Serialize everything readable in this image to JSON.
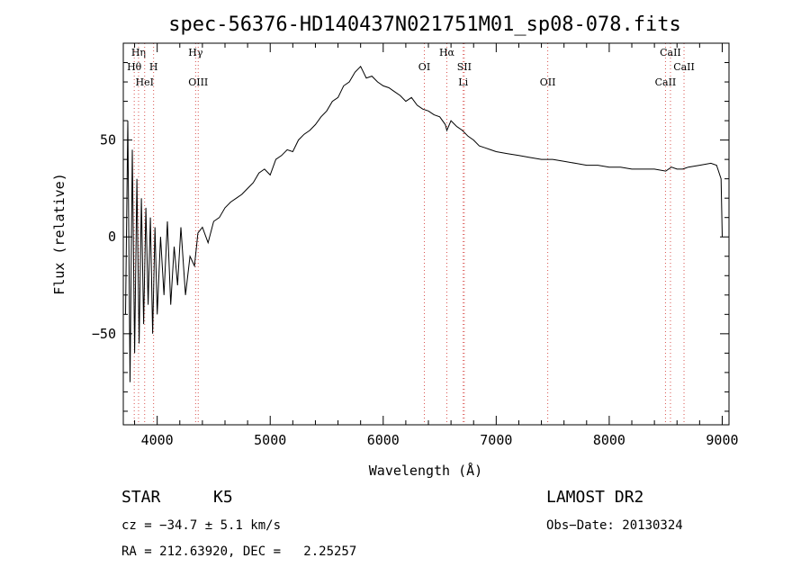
{
  "chart_data": {
    "type": "line",
    "title": "spec-56376-HD140437N021751M01_sp08-078.fits",
    "xlabel": "Wavelength (Å)",
    "ylabel": "Flux (relative)",
    "xlim": [
      3700,
      9060
    ],
    "ylim": [
      -97,
      100
    ],
    "x_ticks": [
      4000,
      5000,
      6000,
      7000,
      8000,
      9000
    ],
    "y_ticks": [
      -50,
      0,
      50
    ],
    "grid": false,
    "series": [
      {
        "x": [
          3720,
          3740,
          3760,
          3780,
          3800,
          3820,
          3840,
          3860,
          3880,
          3900,
          3920,
          3940,
          3960,
          3980,
          4000,
          4030,
          4060,
          4090,
          4120,
          4150,
          4180,
          4210,
          4250,
          4290,
          4330,
          4360,
          4400,
          4450,
          4500,
          4550,
          4600,
          4650,
          4700,
          4750,
          4800,
          4850,
          4900,
          4950,
          5000,
          5050,
          5100,
          5150,
          5200,
          5250,
          5300,
          5350,
          5400,
          5450,
          5500,
          5550,
          5600,
          5650,
          5700,
          5750,
          5800,
          5850,
          5900,
          5950,
          6000,
          6050,
          6100,
          6150,
          6200,
          6250,
          6300,
          6350,
          6400,
          6450,
          6500,
          6550,
          6563,
          6600,
          6650,
          6700,
          6750,
          6800,
          6850,
          6900,
          6950,
          7000,
          7100,
          7200,
          7300,
          7400,
          7500,
          7600,
          7700,
          7800,
          7900,
          8000,
          8100,
          8200,
          8300,
          8400,
          8500,
          8550,
          8600,
          8650,
          8700,
          8800,
          8900,
          8950,
          8990,
          9000
        ],
        "y": [
          -40,
          60,
          -75,
          45,
          -60,
          30,
          -55,
          20,
          -45,
          15,
          -35,
          10,
          -50,
          5,
          -40,
          0,
          -30,
          8,
          -35,
          -5,
          -25,
          5,
          -30,
          -10,
          -15,
          2,
          5,
          -3,
          8,
          10,
          15,
          18,
          20,
          22,
          25,
          28,
          33,
          35,
          32,
          40,
          42,
          45,
          44,
          50,
          53,
          55,
          58,
          62,
          65,
          70,
          72,
          78,
          80,
          85,
          88,
          82,
          83,
          80,
          78,
          77,
          75,
          73,
          70,
          72,
          68,
          66,
          65,
          63,
          62,
          58,
          55,
          60,
          57,
          55,
          52,
          50,
          47,
          46,
          45,
          44,
          43,
          42,
          41,
          40,
          40,
          39,
          38,
          37,
          37,
          36,
          36,
          35,
          35,
          35,
          34,
          36,
          35,
          35,
          36,
          37,
          38,
          37,
          30,
          0
        ]
      }
    ],
    "spectral_lines": [
      {
        "label": "Hη",
        "wavelength": 3835,
        "tier": 0
      },
      {
        "label": "Hθ",
        "wavelength": 3797,
        "tier": 1
      },
      {
        "label": "H",
        "wavelength": 3968,
        "tier": 1
      },
      {
        "label": "HeI",
        "wavelength": 3889,
        "tier": 2
      },
      {
        "label": "Hγ",
        "wavelength": 4340,
        "tier": 0
      },
      {
        "label": "OIII",
        "wavelength": 4363,
        "tier": 2
      },
      {
        "label": "Hα",
        "wavelength": 6563,
        "tier": 0
      },
      {
        "label": "OI",
        "wavelength": 6364,
        "tier": 1
      },
      {
        "label": "SII",
        "wavelength": 6717,
        "tier": 1
      },
      {
        "label": "Li",
        "wavelength": 6708,
        "tier": 2
      },
      {
        "label": "OII",
        "wavelength": 7456,
        "tier": 2
      },
      {
        "label": "CaII",
        "wavelength": 8542,
        "tier": 0
      },
      {
        "label": "CaII",
        "wavelength": 8662,
        "tier": 1
      },
      {
        "label": "CaII",
        "wavelength": 8498,
        "tier": 2
      }
    ]
  },
  "info": {
    "class_label": "STAR",
    "subclass": "K5",
    "survey": "LAMOST DR2",
    "cz": "cz = −34.7 ± 5.1 km/s",
    "obs_date": "Obs−Date: 20130324",
    "coords": "RA = 212.63920, DEC =   2.25257"
  },
  "colors": {
    "axis": "#000000",
    "line_marker": "#d9534f"
  }
}
